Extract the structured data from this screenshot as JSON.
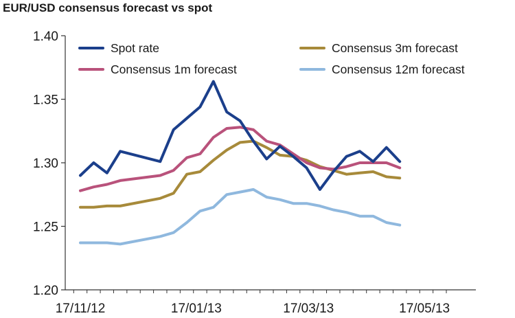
{
  "chart_data": {
    "type": "line",
    "title": "EUR/USD consensus forecast vs spot",
    "xlabel": "",
    "ylabel": "",
    "x_tick_labels": [
      "17/11/12",
      "17/01/13",
      "17/03/13",
      "17/05/13"
    ],
    "y_tick_labels": [
      "1.20",
      "1.25",
      "1.30",
      "1.35",
      "1.40"
    ],
    "ylim": [
      1.2,
      1.4
    ],
    "xlim": [
      "17/11/12",
      "28/05/13"
    ],
    "grid": false,
    "legend_placement": "top, two columns",
    "x": [
      "17/11/12",
      "24/11/12",
      "01/12/12",
      "08/12/12",
      "15/12/12",
      "22/12/12",
      "29/12/12",
      "05/01/13",
      "12/01/13",
      "19/01/13",
      "26/01/13",
      "02/02/13",
      "09/02/13",
      "16/02/13",
      "23/02/13",
      "02/03/13",
      "09/03/13",
      "16/03/13",
      "23/03/13",
      "30/03/13",
      "06/04/13",
      "13/04/13",
      "20/04/13",
      "27/04/13",
      "04/05/13",
      "11/05/13",
      "18/05/13",
      "25/05/13"
    ],
    "series": [
      {
        "name": "Spot rate",
        "color": "#1b3f8b",
        "values": [
          1.29,
          1.3,
          1.292,
          1.309,
          null,
          null,
          1.301,
          1.326,
          1.335,
          1.344,
          1.364,
          1.34,
          1.333,
          1.317,
          1.303,
          1.313,
          1.305,
          1.296,
          1.279,
          1.293,
          1.305,
          1.309,
          1.301,
          1.312,
          1.301,
          null,
          null,
          null
        ]
      },
      {
        "name": "Consensus 1m forecast",
        "color": "#b9527b",
        "values": [
          1.278,
          1.281,
          1.283,
          1.286,
          null,
          null,
          1.29,
          1.294,
          1.304,
          1.307,
          1.32,
          1.327,
          1.328,
          1.326,
          1.317,
          1.314,
          1.307,
          1.3,
          1.296,
          1.295,
          1.297,
          1.3,
          1.3,
          1.3,
          1.296,
          null,
          null,
          null
        ]
      },
      {
        "name": "Consensus 3m forecast",
        "color": "#a78a3a",
        "values": [
          1.265,
          1.265,
          1.266,
          1.266,
          null,
          null,
          1.272,
          1.276,
          1.291,
          1.293,
          1.302,
          1.31,
          1.316,
          1.317,
          1.312,
          1.306,
          1.305,
          1.302,
          1.297,
          1.294,
          1.291,
          1.292,
          1.293,
          1.289,
          1.288,
          null,
          null,
          null
        ]
      },
      {
        "name": "Consensus 12m forecast",
        "color": "#8fb8de",
        "values": [
          1.237,
          1.237,
          1.237,
          1.236,
          null,
          null,
          1.242,
          1.245,
          1.253,
          1.262,
          1.265,
          1.275,
          1.277,
          1.279,
          1.273,
          1.271,
          1.268,
          1.268,
          1.266,
          1.263,
          1.261,
          1.258,
          1.258,
          1.253,
          1.251,
          null,
          null,
          null
        ]
      }
    ]
  }
}
